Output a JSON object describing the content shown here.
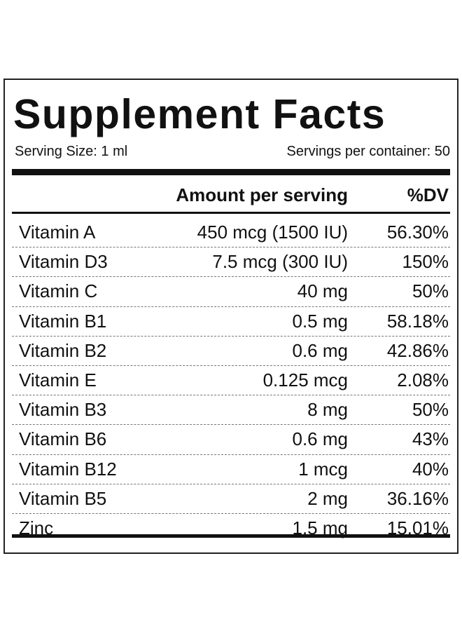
{
  "header": {
    "title": "Supplement Facts",
    "serving_size": "Serving Size: 1 ml",
    "servings_per_container": "Servings per container: 50"
  },
  "table": {
    "columns": [
      "Amount per serving",
      "%DV"
    ],
    "rows": [
      [
        "Vitamin A",
        "450 mcg (1500 IU)",
        "56.30%"
      ],
      [
        "Vitamin D3",
        "7.5 mcg (300 IU)",
        "150%"
      ],
      [
        "Vitamin C",
        "40 mg",
        "50%"
      ],
      [
        "Vitamin B1",
        "0.5 mg",
        "58.18%"
      ],
      [
        "Vitamin B2",
        "0.6 mg",
        "42.86%"
      ],
      [
        "Vitamin E",
        "0.125 mcg",
        "2.08%"
      ],
      [
        "Vitamin B3",
        "8 mg",
        "50%"
      ],
      [
        "Vitamin B6",
        "0.6 mg",
        "43%"
      ],
      [
        "Vitamin B12",
        "1 mcg",
        "40%"
      ],
      [
        "Vitamin B5",
        "2 mg",
        "36.16%"
      ],
      [
        "Zinc",
        "1.5 mg",
        "15.01%"
      ]
    ]
  }
}
